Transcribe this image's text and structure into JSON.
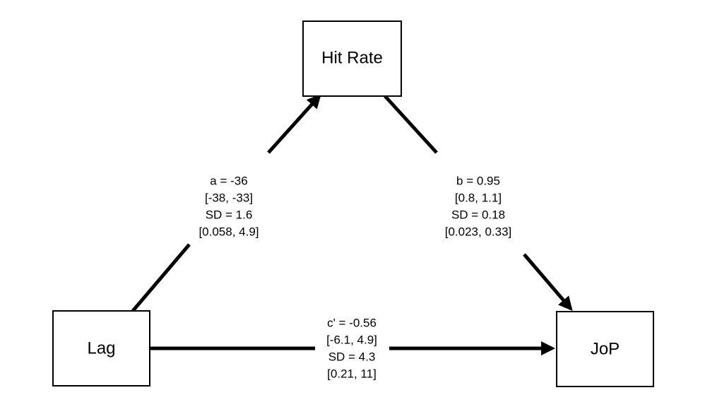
{
  "nodes": {
    "hit_rate": "Hit Rate",
    "lag": "Lag",
    "jop": "JoP"
  },
  "paths": {
    "a": {
      "coef": "a = -36",
      "ci": "[-38, -33]",
      "sd": "SD = 1.6",
      "sd_ci": "[0.058, 4.9]"
    },
    "b": {
      "coef": "b = 0.95",
      "ci": "[0.8, 1.1]",
      "sd": "SD = 0.18",
      "sd_ci": "[0.023, 0.33]"
    },
    "c_prime": {
      "coef": "c' = -0.56",
      "ci": "[-6.1, 4.9]",
      "sd": "SD = 4.3",
      "sd_ci": "[0.21, 11]"
    }
  },
  "colors": {
    "stroke": "#000000",
    "background": "#ffffff"
  }
}
